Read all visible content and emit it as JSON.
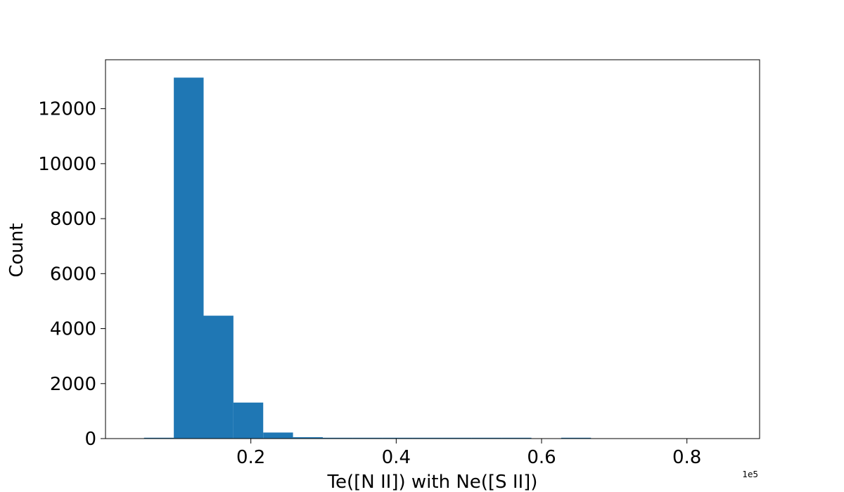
{
  "chart_data": {
    "type": "bar",
    "subtype": "histogram",
    "xlabel": "Te([N II]) with Ne([S II])",
    "ylabel": "Count",
    "x_offset_label": "1e5",
    "xlim": [
      0.0,
      0.9
    ],
    "ylim": [
      0,
      13780
    ],
    "xticks": [
      0.2,
      0.4,
      0.6,
      0.8
    ],
    "xtick_labels": [
      "0.2",
      "0.4",
      "0.6",
      "0.8"
    ],
    "yticks": [
      0,
      2000,
      4000,
      6000,
      8000,
      10000,
      12000
    ],
    "ytick_labels": [
      "0",
      "2000",
      "4000",
      "6000",
      "8000",
      "10000",
      "12000"
    ],
    "bin_edges": [
      0.053,
      0.094,
      0.135,
      0.176,
      0.217,
      0.258,
      0.299,
      0.34,
      0.381,
      0.422,
      0.463,
      0.504,
      0.545,
      0.586,
      0.627,
      0.668,
      0.709,
      0.75,
      0.791,
      0.832,
      0.873
    ],
    "values": [
      15,
      13130,
      4470,
      1310,
      220,
      50,
      20,
      15,
      10,
      3,
      15,
      2,
      1,
      0,
      1,
      0,
      0,
      0,
      0,
      0
    ],
    "bar_color": "#1f77b4",
    "grid": false
  }
}
